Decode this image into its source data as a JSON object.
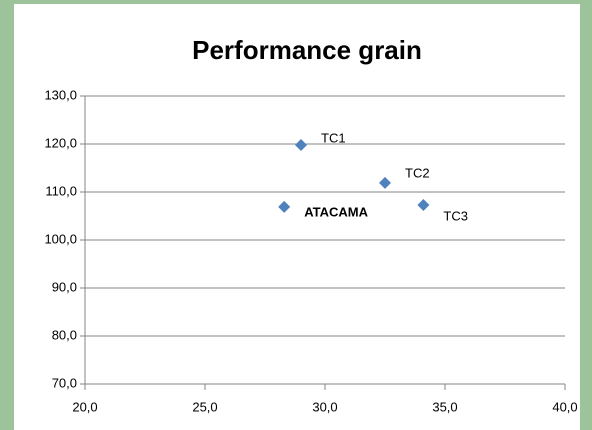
{
  "chart_data": {
    "type": "scatter",
    "title": "Performance grain",
    "series": [
      {
        "color": "#4f81bd",
        "x": [
          29.0,
          32.5,
          28.3,
          34.1
        ],
        "values": [
          119.8,
          111.9,
          106.9,
          107.3
        ],
        "point_labels": [
          "TC1",
          "TC2",
          "ATACAMA",
          "TC3"
        ],
        "label_colors": [
          "#000000",
          "#000000",
          "#ff0000",
          "#000000"
        ]
      }
    ],
    "xlim": [
      20,
      40
    ],
    "xticks": [
      {
        "value": 20,
        "label": "20,0"
      },
      {
        "value": 25,
        "label": "25,0"
      },
      {
        "value": 30,
        "label": "30,0"
      },
      {
        "value": 35,
        "label": "35,0"
      },
      {
        "value": 40,
        "label": "40,0"
      }
    ],
    "ylim": [
      70,
      130
    ],
    "yticks": [
      {
        "value": 70,
        "label": "70,0"
      },
      {
        "value": 80,
        "label": "80,0"
      },
      {
        "value": 90,
        "label": "90,0"
      },
      {
        "value": 100,
        "label": "100,0"
      },
      {
        "value": 110,
        "label": "110,0"
      },
      {
        "value": 120,
        "label": "120,0"
      },
      {
        "value": 130,
        "label": "130,0"
      }
    ],
    "grid": true
  }
}
